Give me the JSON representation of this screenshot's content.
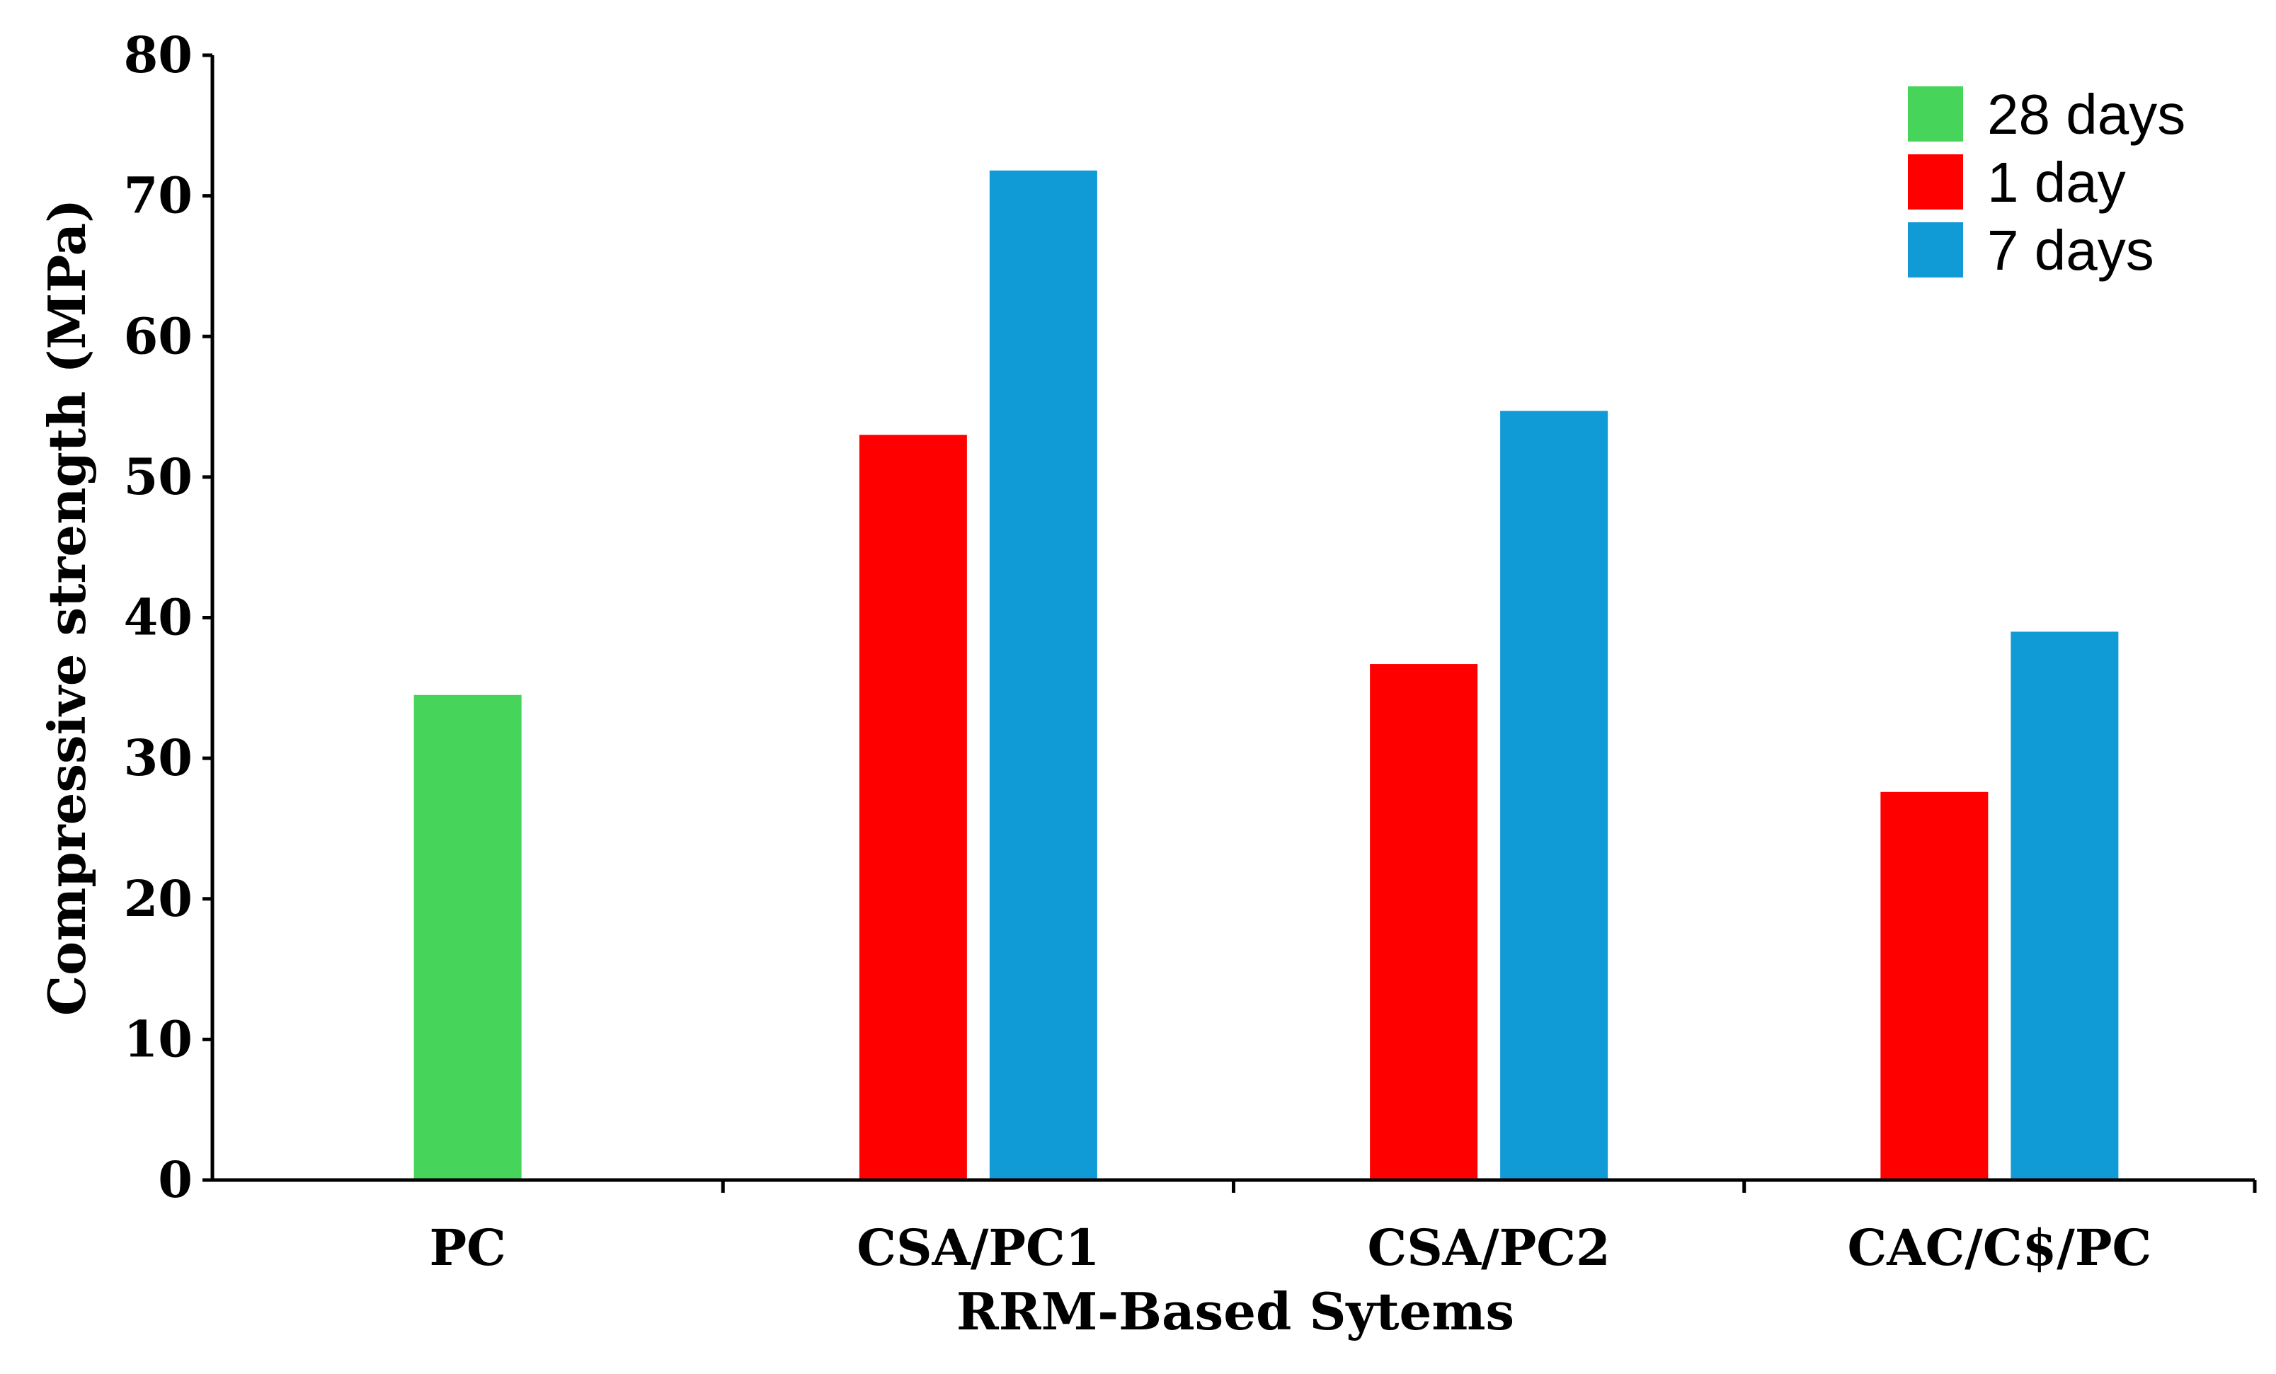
{
  "chart_data": {
    "type": "bar",
    "title": "",
    "xlabel": "RRM-Based Sytems",
    "ylabel": "Compressive strength (MPa)",
    "ylim": [
      0,
      80
    ],
    "yticks": [
      0,
      10,
      20,
      30,
      40,
      50,
      60,
      70,
      80
    ],
    "grid": false,
    "legend_position": "top-right",
    "categories": [
      "PC",
      "CSA/PC1",
      "CSA/PC2",
      "CAC/C$/PC"
    ],
    "series": [
      {
        "name": "28 days",
        "color": "#46d45a",
        "values": [
          34.5,
          null,
          null,
          null
        ]
      },
      {
        "name": "1 day",
        "color": "#ff0000",
        "values": [
          null,
          53.0,
          36.7,
          27.6
        ]
      },
      {
        "name": "7 days",
        "color": "#109ad6",
        "values": [
          null,
          71.8,
          54.7,
          39.0
        ]
      }
    ]
  }
}
